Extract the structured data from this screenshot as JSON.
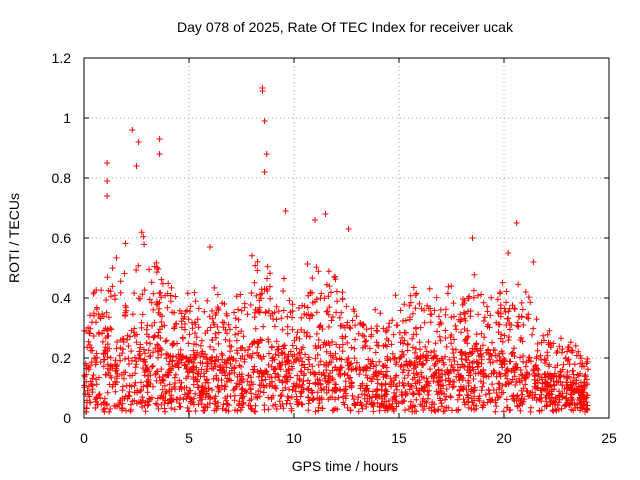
{
  "chart_data": {
    "type": "scatter",
    "title": "Day 078 of 2025, Rate Of TEC Index for receiver ucak",
    "xlabel": "GPS time / hours",
    "ylabel": "ROTI / TECUs",
    "xlim": [
      0,
      25
    ],
    "ylim": [
      0,
      1.2
    ],
    "x_ticks": [
      "0",
      "5",
      "10",
      "15",
      "20",
      "25"
    ],
    "y_ticks": [
      "0",
      "0.2",
      "0.4",
      "0.6",
      "0.8",
      "1",
      "1.2"
    ],
    "grid": true,
    "marker": "+",
    "color": "#ff0000",
    "x_range_of_data": [
      0,
      24
    ],
    "notable_points": [
      {
        "x": 8.5,
        "y": 1.1
      },
      {
        "x": 8.5,
        "y": 1.09
      },
      {
        "x": 8.6,
        "y": 0.99
      },
      {
        "x": 2.3,
        "y": 0.96
      },
      {
        "x": 3.6,
        "y": 0.93
      },
      {
        "x": 2.6,
        "y": 0.92
      },
      {
        "x": 8.7,
        "y": 0.88
      },
      {
        "x": 3.6,
        "y": 0.88
      },
      {
        "x": 1.1,
        "y": 0.85
      },
      {
        "x": 2.5,
        "y": 0.84
      },
      {
        "x": 8.6,
        "y": 0.82
      },
      {
        "x": 1.1,
        "y": 0.79
      },
      {
        "x": 1.1,
        "y": 0.74
      },
      {
        "x": 9.6,
        "y": 0.69
      },
      {
        "x": 11.5,
        "y": 0.68
      },
      {
        "x": 11.0,
        "y": 0.66
      },
      {
        "x": 20.6,
        "y": 0.65
      },
      {
        "x": 12.6,
        "y": 0.63
      },
      {
        "x": 18.5,
        "y": 0.6
      },
      {
        "x": 6.0,
        "y": 0.57
      },
      {
        "x": 20.2,
        "y": 0.55
      },
      {
        "x": 21.4,
        "y": 0.52
      }
    ],
    "hour_profile": {
      "hours": [
        0,
        1,
        2,
        3,
        4,
        5,
        6,
        7,
        8,
        9,
        10,
        11,
        12,
        13,
        14,
        15,
        16,
        17,
        18,
        19,
        20,
        21,
        22,
        23,
        24
      ],
      "typical_max": [
        0.35,
        0.5,
        0.6,
        0.65,
        0.45,
        0.42,
        0.48,
        0.4,
        0.55,
        0.55,
        0.45,
        0.55,
        0.5,
        0.4,
        0.38,
        0.42,
        0.45,
        0.42,
        0.48,
        0.5,
        0.45,
        0.45,
        0.3,
        0.27,
        0.2
      ]
    }
  }
}
